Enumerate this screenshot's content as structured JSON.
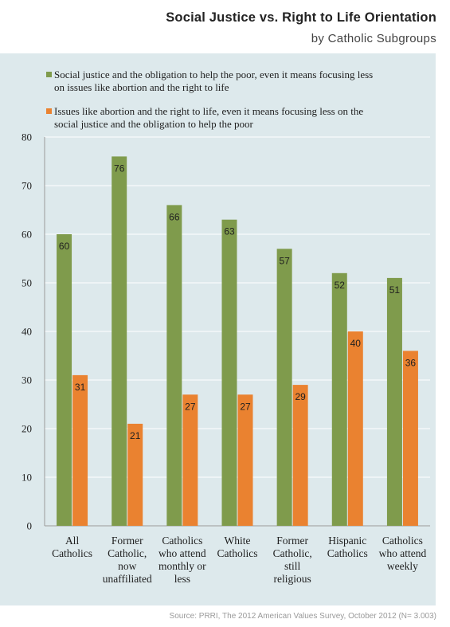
{
  "header": {
    "title": "Social Justice vs. Right to Life Orientation",
    "subtitle": "by Catholic Subgroups"
  },
  "source": "Source: PRRI, The 2012 American Values Survey, October 2012 (N= 3.003)",
  "colors": {
    "background": "#dde9ec",
    "social_justice": "#7f9b4c",
    "right_to_life": "#ea8230",
    "gridline": "#ffffff"
  },
  "chart_data": {
    "type": "bar",
    "title": "",
    "xlabel": "",
    "ylabel": "",
    "ylim": [
      0,
      80
    ],
    "yticks": [
      0,
      10,
      20,
      30,
      40,
      50,
      60,
      70,
      80
    ],
    "grid": true,
    "legend_position": "top",
    "categories": [
      [
        "All",
        "Catholics"
      ],
      [
        "Former",
        "Catholic,",
        "now",
        "unaffiliated"
      ],
      [
        "Catholics",
        "who attend",
        "monthly or",
        "less"
      ],
      [
        "White",
        "Catholics"
      ],
      [
        "Former",
        "Catholic,",
        "still",
        "religious"
      ],
      [
        "Hispanic",
        "Catholics"
      ],
      [
        "Catholics",
        "who attend",
        "weekly"
      ]
    ],
    "series": [
      {
        "name_lines": [
          "Social justice and the obligation to help the poor, even it means focusing less",
          "on issues like abortion and the right to life"
        ],
        "color": "#7f9b4c",
        "values": [
          60,
          76,
          66,
          63,
          57,
          52,
          51
        ]
      },
      {
        "name_lines": [
          "Issues like abortion and the right to life, even it means focusing less on the",
          "social justice and the obligation to help the poor"
        ],
        "color": "#ea8230",
        "values": [
          31,
          21,
          27,
          27,
          29,
          40,
          36
        ]
      }
    ]
  }
}
